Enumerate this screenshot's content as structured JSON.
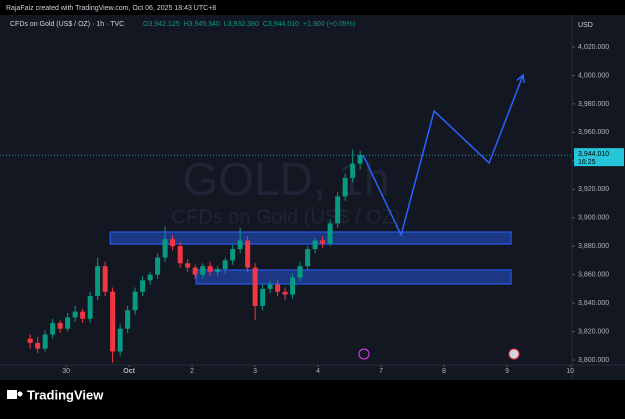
{
  "header": "RajaFaiz created with TradingView.com, Oct 06, 2025 18:43 UTC+8",
  "footer": {
    "brand": "TradingView"
  },
  "chart_data": {
    "type": "candlestick",
    "symbol": "CFDs on Gold (US$ / OZ) · 1h · TVC",
    "legend_values": [
      "O3,942.125",
      "H3,945.340",
      "L3,932.380",
      "C3,944.010",
      "+1.900 (+0.05%)"
    ],
    "watermark": [
      "GOLD, 1h",
      "CFDs on Gold (US$ / OZ)"
    ],
    "currency": "USD",
    "up_color": "#089981",
    "down_color": "#f23645",
    "x": [
      -0.571,
      -0.452,
      -0.333,
      -0.214,
      -0.095,
      0.024,
      0.143,
      0.262,
      0.381,
      0.5,
      0.619,
      0.738,
      0.857,
      0.976,
      1.095,
      1.214,
      1.333,
      1.452,
      1.571,
      1.69,
      1.81,
      1.929,
      2.048,
      2.167,
      2.286,
      2.405,
      2.524,
      2.643,
      2.762,
      2.881,
      3.0,
      3.119,
      3.238,
      3.357,
      3.476,
      3.595,
      3.714,
      3.833,
      3.952,
      4.071,
      4.19,
      4.31,
      4.429,
      4.548,
      4.667
    ],
    "open": [
      3815,
      3812,
      3808,
      3818,
      3826,
      3822,
      3830,
      3834,
      3829,
      3845,
      3866,
      3848,
      3806,
      3822,
      3835,
      3848,
      3856,
      3860,
      3872,
      3885,
      3880,
      3868,
      3865,
      3860,
      3866,
      3862,
      3864,
      3870,
      3878,
      3884,
      3865,
      3838,
      3850,
      3853,
      3848,
      3846,
      3858,
      3866,
      3878,
      3884,
      3882,
      3896,
      3915,
      3928,
      3938
    ],
    "high": [
      3818,
      3816,
      3821,
      3829,
      3828,
      3833,
      3838,
      3836,
      3848,
      3872,
      3869,
      3851,
      3825,
      3838,
      3851,
      3859,
      3862,
      3875,
      3894,
      3888,
      3883,
      3871,
      3867,
      3868,
      3869,
      3866,
      3872,
      3881,
      3893,
      3887,
      3868,
      3853,
      3856,
      3856,
      3851,
      3861,
      3869,
      3880,
      3886,
      3887,
      3899,
      3918,
      3931,
      3948,
      3947
    ],
    "low": [
      3808,
      3805,
      3806,
      3815,
      3819,
      3820,
      3827,
      3826,
      3826,
      3842,
      3845,
      3798,
      3803,
      3819,
      3832,
      3845,
      3853,
      3857,
      3869,
      3877,
      3865,
      3862,
      3857,
      3857,
      3859,
      3859,
      3861,
      3867,
      3875,
      3862,
      3828,
      3835,
      3847,
      3845,
      3842,
      3843,
      3855,
      3863,
      3875,
      3879,
      3880,
      3893,
      3912,
      3925,
      3934
    ],
    "close": [
      3812,
      3808,
      3818,
      3826,
      3822,
      3830,
      3834,
      3829,
      3845,
      3866,
      3848,
      3806,
      3822,
      3835,
      3848,
      3856,
      3860,
      3872,
      3885,
      3880,
      3868,
      3865,
      3860,
      3866,
      3862,
      3864,
      3870,
      3878,
      3884,
      3865,
      3838,
      3850,
      3853,
      3848,
      3846,
      3858,
      3866,
      3878,
      3884,
      3882,
      3896,
      3915,
      3928,
      3938,
      3944.01
    ],
    "zones": [
      {
        "x0": 0.698,
        "x1": 7.063,
        "y0": 3881.5,
        "y1": 3890
      },
      {
        "x0": 2.063,
        "x1": 7.063,
        "y0": 3853.4,
        "y1": 3863.3
      }
    ],
    "projection": {
      "x": [
        4.714,
        5.317,
        5.841,
        6.714,
        7.254
      ],
      "y": [
        3944.01,
        3887.9,
        3975,
        3938.5,
        4000.3
      ],
      "color": "#2962ff"
    },
    "last_price": {
      "value": 3944.01,
      "label": "3,944.010"
    },
    "last_time": "16:25",
    "xlim": [
      -1.05,
      8.03
    ],
    "xticks": [
      {
        "value": 0,
        "label": "30"
      },
      {
        "value": 1,
        "label": "Oct"
      },
      {
        "value": 2,
        "label": "2"
      },
      {
        "value": 3,
        "label": "3"
      },
      {
        "value": 4,
        "label": "4"
      },
      {
        "value": 5,
        "label": "7"
      },
      {
        "value": 6,
        "label": "8"
      },
      {
        "value": 7,
        "label": "9"
      },
      {
        "value": 8,
        "label": "10"
      }
    ],
    "ylim": [
      3796.5,
      4042.5
    ],
    "yticks": [
      {
        "value": 3800,
        "label": "3,800.000"
      },
      {
        "value": 3820,
        "label": "3,820.000"
      },
      {
        "value": 3840,
        "label": "3,840.000"
      },
      {
        "value": 3860,
        "label": "3,860.000"
      },
      {
        "value": 3880,
        "label": "3,880.000"
      },
      {
        "value": 3900,
        "label": "3,900.000"
      },
      {
        "value": 3920,
        "label": "3,920.000"
      },
      {
        "value": 3940,
        "label": "3,940.000"
      },
      {
        "value": 3960,
        "label": "3,960.000"
      },
      {
        "value": 3980,
        "label": "3,980.000"
      },
      {
        "value": 4000,
        "label": "4,000.000"
      },
      {
        "value": 4020,
        "label": "4,020.000"
      }
    ],
    "grid": false
  }
}
